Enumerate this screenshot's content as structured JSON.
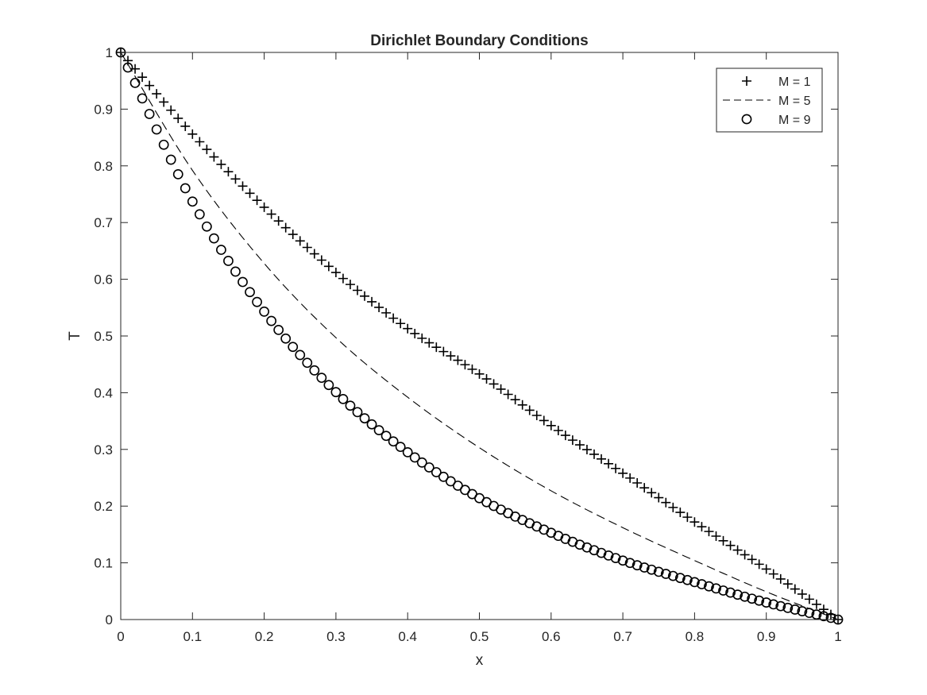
{
  "chart_data": {
    "type": "line",
    "title": "Dirichlet Boundary Conditions",
    "xlabel": "x",
    "ylabel": "T",
    "xlim": [
      0,
      1
    ],
    "ylim": [
      0,
      1
    ],
    "xticks": [
      0,
      0.1,
      0.2,
      0.3,
      0.4,
      0.5,
      0.6,
      0.7,
      0.8,
      0.9,
      1
    ],
    "yticks": [
      0,
      0.1,
      0.2,
      0.3,
      0.4,
      0.5,
      0.6,
      0.7,
      0.8,
      0.9,
      1
    ],
    "xtick_labels": [
      "0",
      "0.1",
      "0.2",
      "0.3",
      "0.4",
      "0.5",
      "0.6",
      "0.7",
      "0.8",
      "0.9",
      "1"
    ],
    "ytick_labels": [
      "0",
      "0.1",
      "0.2",
      "0.3",
      "0.4",
      "0.5",
      "0.6",
      "0.7",
      "0.8",
      "0.9",
      "1"
    ],
    "grid": false,
    "legend_position": "top-right",
    "series": [
      {
        "name": "M = 1",
        "style": "plus-markers",
        "color": "#000000",
        "x": [
          0,
          0.1,
          0.2,
          0.3,
          0.4,
          0.5,
          0.6,
          0.7,
          0.8,
          0.9,
          1
        ],
        "y": [
          1,
          0.856,
          0.727,
          0.612,
          0.513,
          0.433,
          0.342,
          0.258,
          0.172,
          0.089,
          0
        ]
      },
      {
        "name": "M = 5",
        "style": "dashed-line",
        "color": "#000000",
        "x": [
          0,
          0.1,
          0.2,
          0.3,
          0.4,
          0.5,
          0.6,
          0.7,
          0.8,
          0.9,
          1
        ],
        "y": [
          1,
          0.792,
          0.628,
          0.497,
          0.392,
          0.303,
          0.227,
          0.162,
          0.104,
          0.049,
          0
        ]
      },
      {
        "name": "M = 9",
        "style": "circle-markers",
        "color": "#000000",
        "x": [
          0,
          0.1,
          0.2,
          0.3,
          0.4,
          0.5,
          0.6,
          0.7,
          0.8,
          0.9,
          1
        ],
        "y": [
          1,
          0.737,
          0.543,
          0.401,
          0.295,
          0.214,
          0.153,
          0.104,
          0.066,
          0.03,
          0
        ]
      }
    ]
  }
}
